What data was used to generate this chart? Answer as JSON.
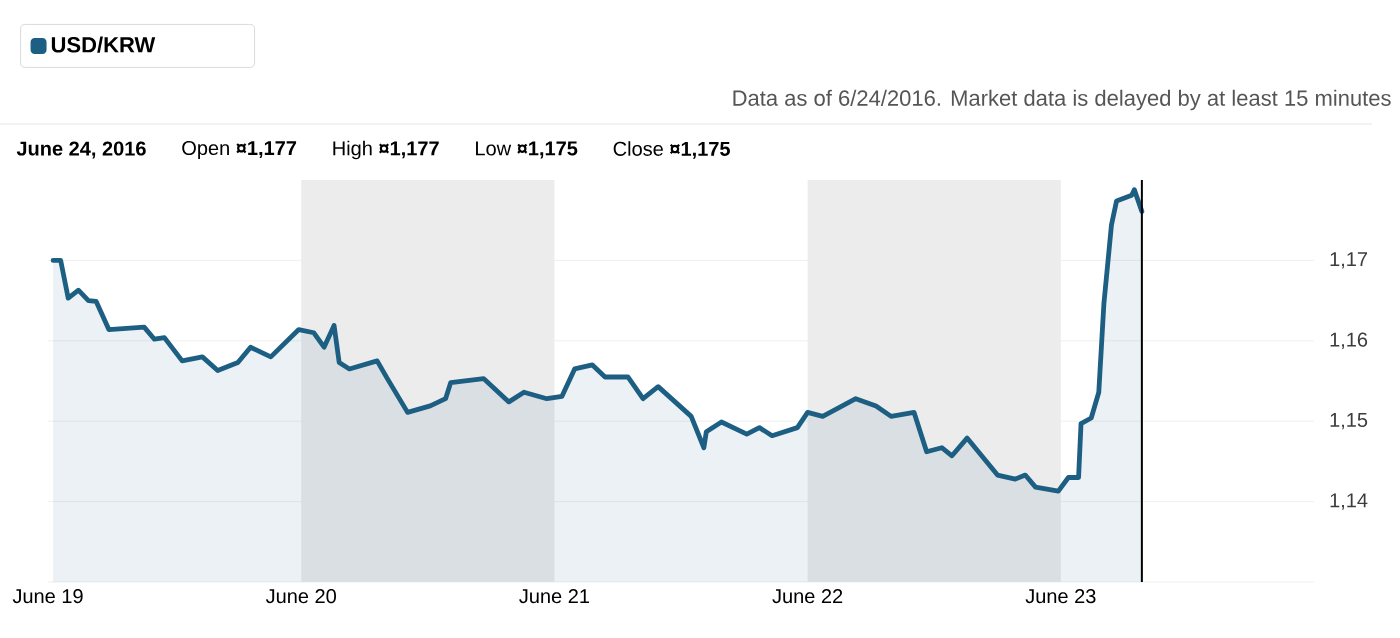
{
  "chart_data": {
    "type": "area",
    "subtitle": "Data as of 6/24/2016. Market data is delayed by at least 15 minutes",
    "annotations": [
      "June 24, 2016",
      "Open **¤1,177**",
      "High **¤1,177**",
      "Low **¤1,175**",
      "Close **¤1,175**"
    ],
    "series": [
      {
        "name": "USD/KRW",
        "color": "#1d5f82",
        "x": [
          "2016-06-19T00:29",
          "2016-06-19T01:12",
          "2016-06-19T01:55",
          "2016-06-19T02:53",
          "2016-06-19T03:50",
          "2016-06-19T04:34",
          "2016-06-19T05:46",
          "2016-06-19T09:07",
          "2016-06-19T10:05",
          "2016-06-19T11:02",
          "2016-06-19T12:43",
          "2016-06-19T14:38",
          "2016-06-19T16:05",
          "2016-06-19T18:00",
          "2016-06-19T19:12",
          "2016-06-19T21:07",
          "2016-06-19T23:46",
          "2016-06-20T01:12",
          "2016-06-20T02:10",
          "2016-06-20T03:07",
          "2016-06-20T03:36",
          "2016-06-20T04:34",
          "2016-06-20T07:12",
          "2016-06-20T08:10",
          "2016-06-20T10:05",
          "2016-06-20T12:14",
          "2016-06-20T13:41",
          "2016-06-20T14:10",
          "2016-06-20T17:17",
          "2016-06-20T19:41",
          "2016-06-20T21:07",
          "2016-06-20T23:17",
          "2016-06-21T00:43",
          "2016-06-21T01:55",
          "2016-06-21T03:36",
          "2016-06-21T04:48",
          "2016-06-21T06:58",
          "2016-06-21T08:24",
          "2016-06-21T09:50",
          "2016-06-21T12:58",
          "2016-06-21T14:10",
          "2016-06-21T14:24",
          "2016-06-21T15:50",
          "2016-06-21T18:14",
          "2016-06-21T19:26",
          "2016-06-21T20:38",
          "2016-06-21T23:02",
          "2016-06-22T00:00",
          "2016-06-22T01:26",
          "2016-06-22T04:34",
          "2016-06-22T06:29",
          "2016-06-22T07:55",
          "2016-06-22T10:05",
          "2016-06-22T11:17",
          "2016-06-22T12:43",
          "2016-06-22T13:41",
          "2016-06-22T15:07",
          "2016-06-22T18:00",
          "2016-06-22T19:41",
          "2016-06-22T20:38",
          "2016-06-22T21:36",
          "2016-06-22T23:46",
          "2016-06-23T00:43",
          "2016-06-23T01:41",
          "2016-06-23T01:55",
          "2016-06-23T02:53",
          "2016-06-23T03:36",
          "2016-06-23T04:05",
          "2016-06-23T04:48",
          "2016-06-23T05:17",
          "2016-06-23T06:43",
          "2016-06-23T06:58",
          "2016-06-23T07:41"
        ],
        "values": [
          1.17,
          1.17,
          1.1653,
          1.1663,
          1.165,
          1.1649,
          1.1614,
          1.1617,
          1.1602,
          1.1604,
          1.1575,
          1.158,
          1.1563,
          1.1573,
          1.1592,
          1.158,
          1.1614,
          1.161,
          1.1592,
          1.1619,
          1.1573,
          1.1565,
          1.1575,
          1.1553,
          1.1511,
          1.1519,
          1.1528,
          1.1548,
          1.1553,
          1.1524,
          1.1536,
          1.1528,
          1.1531,
          1.1565,
          1.157,
          1.1555,
          1.1555,
          1.1528,
          1.1543,
          1.1506,
          1.1467,
          1.1487,
          1.1499,
          1.1484,
          1.1492,
          1.1482,
          1.1492,
          1.1511,
          1.1506,
          1.1528,
          1.1519,
          1.1506,
          1.1511,
          1.1462,
          1.1467,
          1.1457,
          1.1479,
          1.1433,
          1.1428,
          1.1433,
          1.1418,
          1.1413,
          1.143,
          1.143,
          1.1497,
          1.1504,
          1.1536,
          1.1646,
          1.1744,
          1.1774,
          1.1781,
          1.1788,
          1.1761
        ]
      }
    ],
    "xlim": [
      "2016-06-19",
      "2016-06-24"
    ],
    "xticks": [
      {
        "value": "2016-06-19",
        "label": "June 19"
      },
      {
        "value": "2016-06-20",
        "label": "June 20"
      },
      {
        "value": "2016-06-21",
        "label": "June 21"
      },
      {
        "value": "2016-06-22",
        "label": "June 22"
      },
      {
        "value": "2016-06-23",
        "label": "June 23"
      }
    ],
    "ylim": [
      1.13,
      1.18
    ],
    "yticks": [
      {
        "value": 1.13,
        "label": null
      },
      {
        "value": 1.14,
        "label": "1,14"
      },
      {
        "value": 1.15,
        "label": "1,15"
      },
      {
        "value": 1.16,
        "label": "1,16"
      },
      {
        "value": 1.17,
        "label": "1,17"
      }
    ],
    "bands": [
      {
        "axis": "x",
        "from": "2016-06-20",
        "to": "2016-06-21",
        "color": "#ececec"
      },
      {
        "axis": "x",
        "from": "2016-06-22",
        "to": "2016-06-23",
        "color": "#ececec"
      }
    ],
    "ref_lines": [
      {
        "axis": "x",
        "value": "2016-06-23T07:41",
        "color": "#000000"
      }
    ],
    "grid": "y",
    "legend": "top left"
  }
}
